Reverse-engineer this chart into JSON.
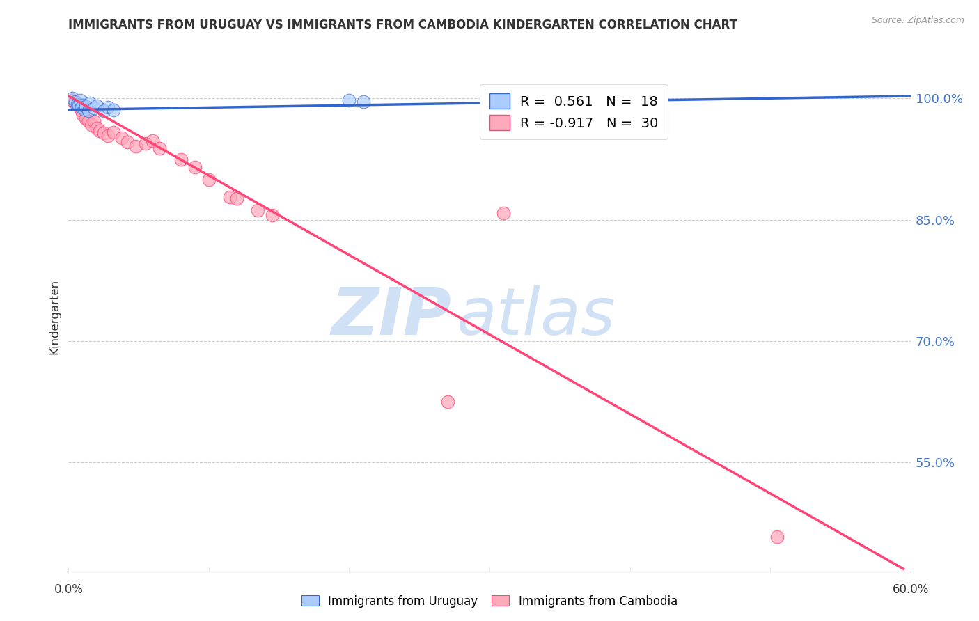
{
  "title": "IMMIGRANTS FROM URUGUAY VS IMMIGRANTS FROM CAMBODIA KINDERGARTEN CORRELATION CHART",
  "source": "Source: ZipAtlas.com",
  "ylabel": "Kindergarten",
  "ylabel_vals": [
    1.0,
    0.85,
    0.7,
    0.55
  ],
  "xmin": 0.0,
  "xmax": 0.6,
  "ymin": 0.415,
  "ymax": 1.045,
  "uruguay_color": "#aaccff",
  "cambodia_color": "#ffaabb",
  "uruguay_line_color": "#3366cc",
  "cambodia_line_color": "#ff4477",
  "legend_line1": "R =  0.561   N =  18",
  "legend_line2": "R = -0.917   N =  30",
  "watermark_zip": "ZIP",
  "watermark_atlas": "atlas",
  "watermark_color": "#d0e0f5",
  "grid_color": "#cccccc",
  "title_color": "#333333",
  "axis_label_color": "#333333",
  "tick_label_color_y": "#4477cc",
  "tick_label_color_x": "#333333",
  "uruguay_scatter": [
    [
      0.003,
      1.0
    ],
    [
      0.005,
      0.996
    ],
    [
      0.006,
      0.993
    ],
    [
      0.007,
      0.992
    ],
    [
      0.008,
      0.998
    ],
    [
      0.009,
      0.989
    ],
    [
      0.01,
      0.992
    ],
    [
      0.011,
      0.987
    ],
    [
      0.012,
      0.99
    ],
    [
      0.014,
      0.985
    ],
    [
      0.015,
      0.994
    ],
    [
      0.018,
      0.988
    ],
    [
      0.02,
      0.991
    ],
    [
      0.025,
      0.985
    ],
    [
      0.028,
      0.989
    ],
    [
      0.032,
      0.986
    ],
    [
      0.2,
      0.998
    ],
    [
      0.21,
      0.996
    ]
  ],
  "cambodia_scatter": [
    [
      0.003,
      0.998
    ],
    [
      0.005,
      0.994
    ],
    [
      0.007,
      0.99
    ],
    [
      0.009,
      0.985
    ],
    [
      0.01,
      0.98
    ],
    [
      0.012,
      0.975
    ],
    [
      0.014,
      0.972
    ],
    [
      0.016,
      0.968
    ],
    [
      0.018,
      0.972
    ],
    [
      0.02,
      0.963
    ],
    [
      0.022,
      0.96
    ],
    [
      0.025,
      0.957
    ],
    [
      0.028,
      0.954
    ],
    [
      0.032,
      0.958
    ],
    [
      0.038,
      0.951
    ],
    [
      0.042,
      0.946
    ],
    [
      0.048,
      0.941
    ],
    [
      0.055,
      0.944
    ],
    [
      0.06,
      0.948
    ],
    [
      0.065,
      0.938
    ],
    [
      0.08,
      0.925
    ],
    [
      0.09,
      0.915
    ],
    [
      0.1,
      0.9
    ],
    [
      0.115,
      0.878
    ],
    [
      0.12,
      0.876
    ],
    [
      0.135,
      0.862
    ],
    [
      0.145,
      0.856
    ],
    [
      0.27,
      0.625
    ],
    [
      0.31,
      0.858
    ],
    [
      0.505,
      0.458
    ]
  ],
  "uruguay_line_x": [
    0.0,
    0.6
  ],
  "uruguay_line_y": [
    0.986,
    1.003
  ],
  "cambodia_line_x": [
    0.0,
    0.595
  ],
  "cambodia_line_y": [
    1.003,
    0.418
  ]
}
